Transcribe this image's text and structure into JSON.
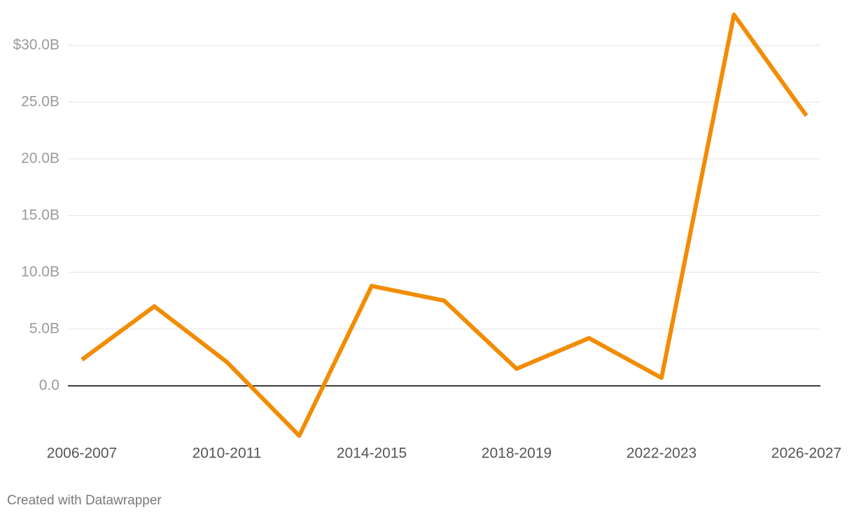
{
  "chart_data": {
    "type": "line",
    "categories": [
      "2006-2007",
      null,
      "2010-2011",
      null,
      "2014-2015",
      null,
      "2018-2019",
      null,
      "2022-2023",
      null,
      "2026-2027"
    ],
    "series": [
      {
        "color": "#f28c00",
        "values": [
          2.3,
          7.0,
          2.1,
          -4.4,
          8.8,
          7.5,
          1.5,
          4.2,
          0.7,
          32.7,
          23.8
        ]
      }
    ],
    "ylim": [
      -4.4,
      32.7
    ],
    "yticks": [
      {
        "value": 0,
        "label": "0.0"
      },
      {
        "value": 5,
        "label": "5.0B"
      },
      {
        "value": 10,
        "label": "10.0B"
      },
      {
        "value": 15,
        "label": "15.0B"
      },
      {
        "value": 20,
        "label": "20.0B"
      },
      {
        "value": 25,
        "label": "25.0B"
      },
      {
        "value": 30,
        "label": "$30.0B"
      }
    ],
    "grid": true,
    "credit": "Created with Datawrapper"
  }
}
